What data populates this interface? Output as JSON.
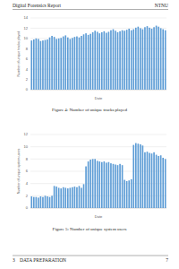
{
  "header": {
    "left": "Digital Forensics Report",
    "right": "NTNU"
  },
  "footer": {
    "section_number": "3",
    "section_title": "DATA PREPARATION",
    "page": "7"
  },
  "chart_data": [
    {
      "type": "bar",
      "title": "Figure 4: Number of unique tracks played",
      "x_label": "Date",
      "y_label": "Number of unique tracks played",
      "categories": [
        null,
        null,
        null,
        null,
        null,
        null,
        null,
        null,
        null,
        null,
        null,
        null,
        null,
        null,
        null,
        null,
        null,
        null,
        null,
        null,
        null,
        null,
        null,
        null,
        null,
        null,
        null,
        null,
        null,
        null,
        null,
        null,
        null,
        null,
        null,
        null,
        null,
        null,
        null,
        null,
        null,
        null,
        null,
        null,
        null,
        null,
        null,
        null,
        null,
        null,
        null,
        null,
        null,
        null,
        null,
        null,
        null,
        null,
        null,
        null
      ],
      "values": [
        9.6,
        9.8,
        10.0,
        9.9,
        9.5,
        9.6,
        9.7,
        9.8,
        10.2,
        10.5,
        10.3,
        9.9,
        10.0,
        10.1,
        10.4,
        10.6,
        10.2,
        9.9,
        10.1,
        10.3,
        10.4,
        10.2,
        10.5,
        10.8,
        11.0,
        10.7,
        10.9,
        11.2,
        11.5,
        11.3,
        11.0,
        11.2,
        11.4,
        11.1,
        11.3,
        11.6,
        11.8,
        11.5,
        11.2,
        11.4,
        11.6,
        11.5,
        11.7,
        11.9,
        11.6,
        11.8,
        12.1,
        12.3,
        12.0,
        11.8,
        12.2,
        12.4,
        12.1,
        11.9,
        12.2,
        12.5,
        12.3,
        12.0,
        11.8,
        11.6
      ],
      "color": "#5b9bd5",
      "ylim": [
        0,
        14
      ],
      "yticks": [
        0,
        2,
        4,
        6,
        8,
        10,
        12,
        14
      ],
      "grid": true
    },
    {
      "type": "bar",
      "title": "Figure 5: Number of unique system users",
      "x_label": "Date",
      "y_label": "Number of unique system users",
      "categories": [
        null,
        null,
        null,
        null,
        null,
        null,
        null,
        null,
        null,
        null,
        null,
        null,
        null,
        null,
        null,
        null,
        null,
        null,
        null,
        null,
        null,
        null,
        null,
        null,
        null,
        null,
        null,
        null,
        null,
        null,
        null,
        null,
        null,
        null,
        null,
        null,
        null,
        null,
        null,
        null,
        null,
        null,
        null,
        null,
        null,
        null,
        null,
        null,
        null,
        null,
        null,
        null,
        null,
        null,
        null,
        null,
        null,
        null,
        null,
        null
      ],
      "values": [
        1.9,
        1.8,
        1.8,
        1.7,
        1.9,
        1.8,
        2.0,
        1.9,
        1.8,
        2.0,
        3.6,
        3.5,
        3.3,
        3.2,
        3.4,
        3.3,
        3.2,
        3.3,
        3.4,
        3.5,
        3.4,
        3.6,
        3.3,
        3.9,
        6.8,
        7.6,
        7.9,
        8.0,
        8.0,
        7.7,
        7.6,
        7.5,
        7.6,
        7.4,
        7.5,
        7.3,
        7.2,
        7.1,
        7.0,
        7.2,
        7.0,
        4.6,
        4.4,
        4.5,
        4.7,
        10.3,
        10.6,
        10.5,
        10.4,
        10.2,
        9.1,
        9.2,
        9.0,
        8.9,
        9.1,
        8.7,
        8.5,
        8.6,
        8.2,
        8.0
      ],
      "color": "#5b9bd5",
      "ylim": [
        0,
        12
      ],
      "yticks": [
        0,
        2,
        4,
        6,
        8,
        10,
        12
      ],
      "grid": true
    }
  ]
}
